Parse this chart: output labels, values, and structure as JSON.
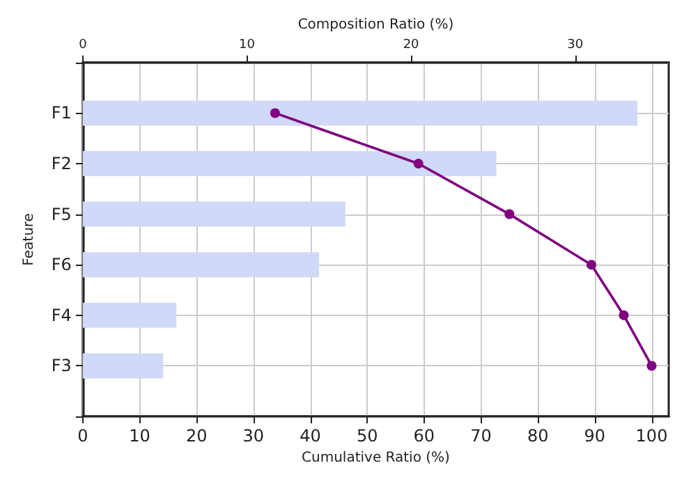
{
  "chart_data": {
    "type": "bar",
    "orientation": "horizontal",
    "xlabel": "Cumulative Ratio (%)",
    "x2label": "Composition Ratio (%)",
    "ylabel": "Feature",
    "categories": [
      "F1",
      "F2",
      "F5",
      "F6",
      "F4",
      "F3"
    ],
    "series": [
      {
        "axis": "x2",
        "color": "#d0d9f7",
        "values": [
          33.8,
          25.2,
          16.0,
          14.4,
          5.7,
          4.9
        ]
      },
      {
        "type": "line",
        "color": "#800080",
        "values": [
          33.8,
          59.0,
          75.0,
          89.4,
          95.1,
          100
        ]
      }
    ],
    "xlim": [
      0,
      103
    ],
    "xticks": [
      0,
      10,
      20,
      30,
      40,
      50,
      60,
      70,
      80,
      90,
      100
    ],
    "x2lim": [
      0,
      35.7
    ],
    "x2ticks": [
      0,
      10,
      20,
      30
    ],
    "grid": true,
    "marker": "circle",
    "line_style": "solid"
  }
}
